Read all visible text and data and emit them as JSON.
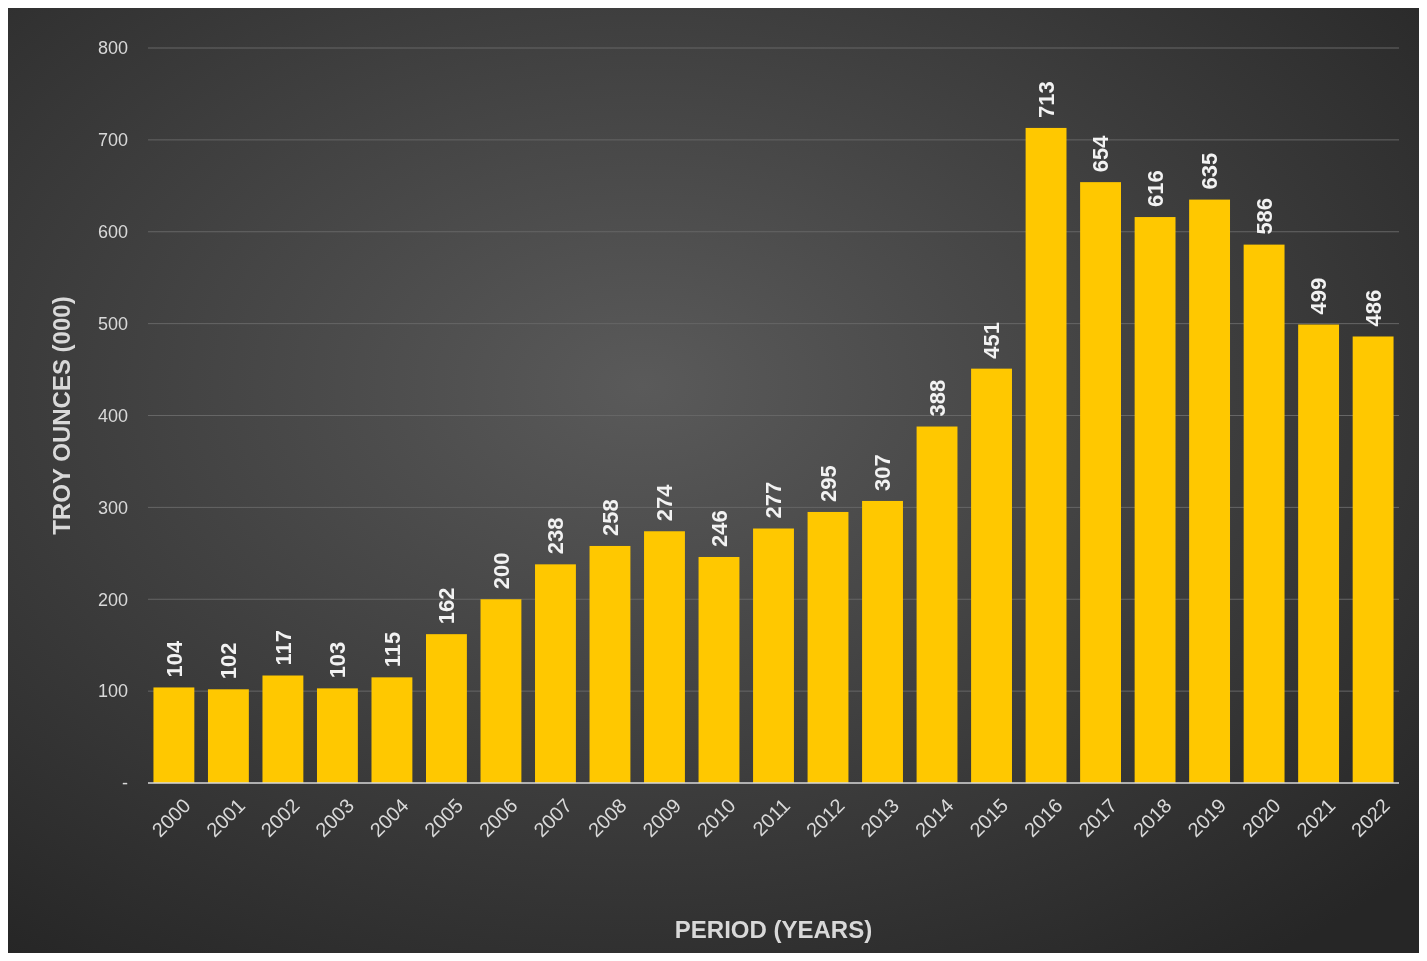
{
  "chart_data": {
    "type": "bar",
    "xlabel": "PERIOD (YEARS)",
    "ylabel": "TROY OUNCES (000)",
    "categories": [
      "2000",
      "2001",
      "2002",
      "2003",
      "2004",
      "2005",
      "2006",
      "2007",
      "2008",
      "2009",
      "2010",
      "2011",
      "2012",
      "2013",
      "2014",
      "2015",
      "2016",
      "2017",
      "2018",
      "2019",
      "2020",
      "2021",
      "2022"
    ],
    "values": [
      104,
      102,
      117,
      103,
      115,
      162,
      200,
      238,
      258,
      274,
      246,
      277,
      295,
      307,
      388,
      451,
      713,
      654,
      616,
      635,
      586,
      499,
      486
    ],
    "color": "#ffc800",
    "ylim": [
      0,
      800
    ],
    "yticks": [
      {
        "value": 0,
        "label": "-"
      },
      100,
      200,
      300,
      400,
      500,
      600,
      700,
      800
    ],
    "grid": "y",
    "data_labels": true
  }
}
